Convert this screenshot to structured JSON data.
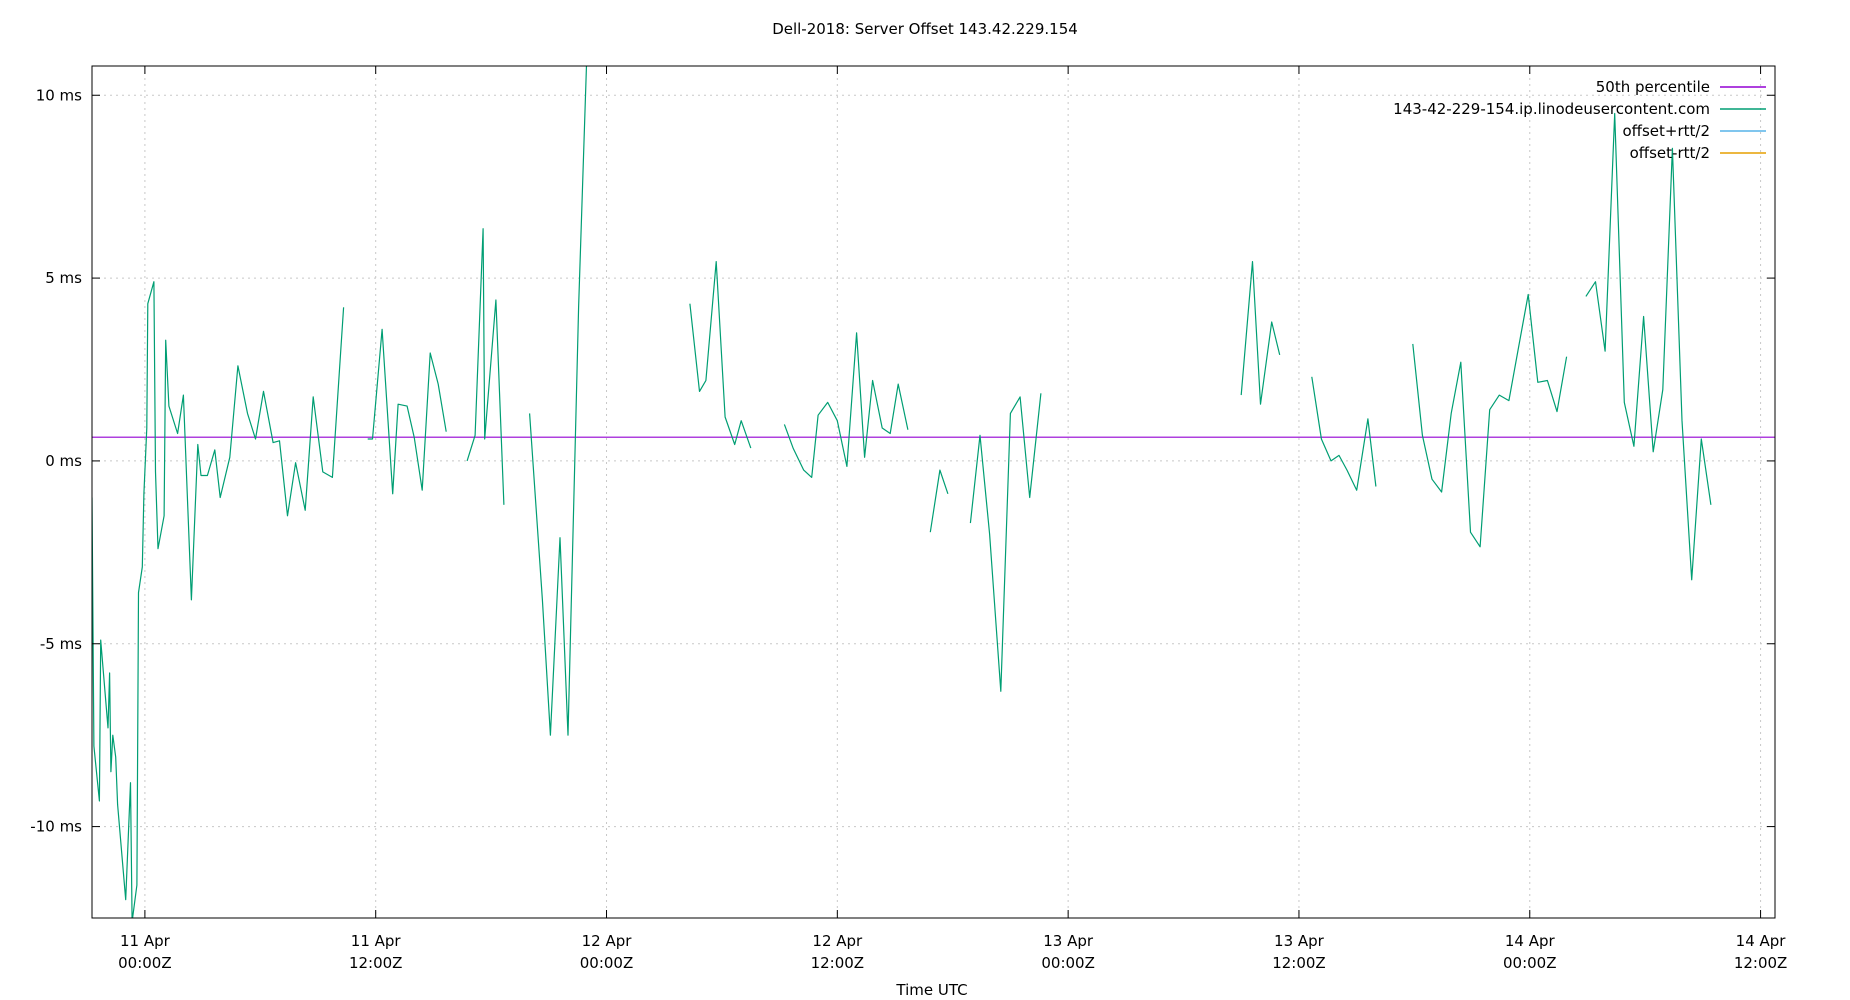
{
  "chart_data": {
    "type": "line",
    "title": "Dell-2018: Server Offset 143.42.229.154",
    "xlabel": "Time UTC",
    "ylabel": "",
    "ylim": [
      -12.5,
      10.8
    ],
    "xlim": [
      "2025-04-10T21:15:00Z",
      "2025-04-14T12:45:00Z"
    ],
    "grid": true,
    "legend_position": "top-right",
    "yticks": [
      {
        "value": 10,
        "label": "10 ms"
      },
      {
        "value": 5,
        "label": "5 ms"
      },
      {
        "value": 0,
        "label": "0 ms"
      },
      {
        "value": -5,
        "label": "-5 ms"
      },
      {
        "value": -10,
        "label": "-10 ms"
      }
    ],
    "xticks": [
      {
        "value": "2025-04-11T00:00:00Z",
        "line1": "11 Apr",
        "line2": "00:00Z"
      },
      {
        "value": "2025-04-11T12:00:00Z",
        "line1": "11 Apr",
        "line2": "12:00Z"
      },
      {
        "value": "2025-04-12T00:00:00Z",
        "line1": "12 Apr",
        "line2": "00:00Z"
      },
      {
        "value": "2025-04-12T12:00:00Z",
        "line1": "12 Apr",
        "line2": "12:00Z"
      },
      {
        "value": "2025-04-13T00:00:00Z",
        "line1": "13 Apr",
        "line2": "00:00Z"
      },
      {
        "value": "2025-04-13T12:00:00Z",
        "line1": "13 Apr",
        "line2": "12:00Z"
      },
      {
        "value": "2025-04-14T00:00:00Z",
        "line1": "14 Apr",
        "line2": "00:00Z"
      },
      {
        "value": "2025-04-14T12:00:00Z",
        "line1": "14 Apr",
        "line2": "12:00Z"
      }
    ],
    "legend": [
      {
        "label": "50th percentile",
        "color": "#9400d3"
      },
      {
        "label": "143-42-229-154.ip.linodeusercontent.com",
        "color": "#009e73"
      },
      {
        "label": "offset+rtt/2",
        "color": "#56b4e9"
      },
      {
        "label": "offset-rtt/2",
        "color": "#e69f00"
      }
    ],
    "series": [
      {
        "name": "50th percentile",
        "color": "#9400d3",
        "segments": [
          [
            [
              "2025-04-10T21:15:00Z",
              0.65
            ],
            [
              "2025-04-14T12:45:00Z",
              0.65
            ]
          ]
        ]
      },
      {
        "name": "143-42-229-154.ip.linodeusercontent.com",
        "color": "#009e73",
        "segments": [
          [
            [
              "2025-04-10T21:15:00Z",
              -1.0
            ],
            [
              "2025-04-10T21:21:00Z",
              -7.8
            ],
            [
              "2025-04-10T21:38:00Z",
              -9.3
            ],
            [
              "2025-04-10T21:42:00Z",
              -4.9
            ],
            [
              "2025-04-10T22:05:00Z",
              -7.3
            ],
            [
              "2025-04-10T22:10:00Z",
              -5.8
            ],
            [
              "2025-04-10T22:14:00Z",
              -8.5
            ],
            [
              "2025-04-10T22:20:00Z",
              -7.5
            ],
            [
              "2025-04-10T22:29:00Z",
              -8.1
            ],
            [
              "2025-04-10T22:35:00Z",
              -9.4
            ],
            [
              "2025-04-10T23:00:00Z",
              -12.0
            ],
            [
              "2025-04-10T23:15:00Z",
              -8.8
            ],
            [
              "2025-04-10T23:20:00Z",
              -12.6
            ],
            [
              "2025-04-10T23:35:00Z",
              -11.6
            ],
            [
              "2025-04-10T23:40:00Z",
              -3.6
            ],
            [
              "2025-04-10T23:52:00Z",
              -2.9
            ],
            [
              "2025-04-10T23:57:00Z",
              -0.9
            ],
            [
              "2025-04-11T00:06:00Z",
              0.9
            ],
            [
              "2025-04-11T00:09:00Z",
              4.3
            ],
            [
              "2025-04-11T00:28:00Z",
              4.9
            ],
            [
              "2025-04-11T00:33:00Z",
              -0.3
            ],
            [
              "2025-04-11T00:41:00Z",
              -2.4
            ],
            [
              "2025-04-11T01:00:00Z",
              -1.5
            ],
            [
              "2025-04-11T01:05:00Z",
              3.3
            ],
            [
              "2025-04-11T01:15:00Z",
              1.5
            ],
            [
              "2025-04-11T01:42:00Z",
              0.75
            ],
            [
              "2025-04-11T02:00:00Z",
              1.8
            ],
            [
              "2025-04-11T02:25:00Z",
              -3.8
            ],
            [
              "2025-04-11T02:45:00Z",
              0.45
            ],
            [
              "2025-04-11T02:55:00Z",
              -0.4
            ],
            [
              "2025-04-11T03:15:00Z",
              -0.4
            ],
            [
              "2025-04-11T03:38:00Z",
              0.3
            ],
            [
              "2025-04-11T03:55:00Z",
              -1.0
            ],
            [
              "2025-04-11T04:25:00Z",
              0.1
            ],
            [
              "2025-04-11T04:50:00Z",
              2.6
            ],
            [
              "2025-04-11T05:20:00Z",
              1.3
            ],
            [
              "2025-04-11T05:45:00Z",
              0.6
            ],
            [
              "2025-04-11T06:10:00Z",
              1.9
            ],
            [
              "2025-04-11T06:40:00Z",
              0.5
            ],
            [
              "2025-04-11T07:00:00Z",
              0.55
            ],
            [
              "2025-04-11T07:25:00Z",
              -1.5
            ],
            [
              "2025-04-11T07:50:00Z",
              -0.05
            ],
            [
              "2025-04-11T08:20:00Z",
              -1.35
            ],
            [
              "2025-04-11T08:45:00Z",
              1.75
            ],
            [
              "2025-04-11T09:15:00Z",
              -0.3
            ],
            [
              "2025-04-11T09:45:00Z",
              -0.45
            ],
            [
              "2025-04-11T10:20:00Z",
              4.2
            ]
          ],
          [
            [
              "2025-04-11T11:35:00Z",
              0.6
            ],
            [
              "2025-04-11T11:50:00Z",
              0.6
            ],
            [
              "2025-04-11T12:20:00Z",
              3.6
            ],
            [
              "2025-04-11T12:53:00Z",
              -0.9
            ],
            [
              "2025-04-11T13:10:00Z",
              1.55
            ],
            [
              "2025-04-11T13:38:00Z",
              1.5
            ],
            [
              "2025-04-11T14:00:00Z",
              0.65
            ],
            [
              "2025-04-11T14:25:00Z",
              -0.8
            ],
            [
              "2025-04-11T14:50:00Z",
              2.95
            ],
            [
              "2025-04-11T15:15:00Z",
              2.1
            ],
            [
              "2025-04-11T15:40:00Z",
              0.8
            ]
          ],
          [
            [
              "2025-04-11T16:45:00Z",
              0.0
            ],
            [
              "2025-04-11T17:10:00Z",
              0.7
            ],
            [
              "2025-04-11T17:35:00Z",
              6.35
            ],
            [
              "2025-04-11T17:40:00Z",
              0.6
            ],
            [
              "2025-04-11T18:15:00Z",
              4.4
            ],
            [
              "2025-04-11T18:40:00Z",
              -1.2
            ]
          ],
          [
            [
              "2025-04-11T20:00:00Z",
              1.3
            ],
            [
              "2025-04-11T20:40:00Z",
              -3.8
            ],
            [
              "2025-04-11T21:05:00Z",
              -7.5
            ],
            [
              "2025-04-11T21:35:00Z",
              -2.1
            ],
            [
              "2025-04-11T22:00:00Z",
              -7.5
            ],
            [
              "2025-04-11T22:33:00Z",
              4.2
            ],
            [
              "2025-04-11T23:00:00Z",
              11.5
            ]
          ],
          [
            [
              "2025-04-12T04:20:00Z",
              4.3
            ],
            [
              "2025-04-12T04:50:00Z",
              1.9
            ],
            [
              "2025-04-12T05:10:00Z",
              2.2
            ],
            [
              "2025-04-12T05:42:00Z",
              5.45
            ],
            [
              "2025-04-12T06:10:00Z",
              1.2
            ],
            [
              "2025-04-12T06:40:00Z",
              0.45
            ],
            [
              "2025-04-12T07:00:00Z",
              1.1
            ],
            [
              "2025-04-12T07:30:00Z",
              0.35
            ]
          ],
          [
            [
              "2025-04-12T09:15:00Z",
              1.0
            ],
            [
              "2025-04-12T09:42:00Z",
              0.35
            ],
            [
              "2025-04-12T10:15:00Z",
              -0.25
            ],
            [
              "2025-04-12T10:40:00Z",
              -0.45
            ],
            [
              "2025-04-12T11:00:00Z",
              1.25
            ],
            [
              "2025-04-12T11:30:00Z",
              1.6
            ],
            [
              "2025-04-12T12:00:00Z",
              1.1
            ],
            [
              "2025-04-12T12:30:00Z",
              -0.15
            ],
            [
              "2025-04-12T13:00:00Z",
              3.5
            ],
            [
              "2025-04-12T13:25:00Z",
              0.1
            ],
            [
              "2025-04-12T13:50:00Z",
              2.2
            ],
            [
              "2025-04-12T14:20:00Z",
              0.9
            ],
            [
              "2025-04-12T14:45:00Z",
              0.75
            ],
            [
              "2025-04-12T15:10:00Z",
              2.1
            ],
            [
              "2025-04-12T15:40:00Z",
              0.85
            ]
          ],
          [
            [
              "2025-04-12T16:50:00Z",
              -1.95
            ],
            [
              "2025-04-12T17:20:00Z",
              -0.25
            ],
            [
              "2025-04-12T17:45:00Z",
              -0.9
            ]
          ],
          [
            [
              "2025-04-12T18:55:00Z",
              -1.7
            ],
            [
              "2025-04-12T19:25:00Z",
              0.7
            ],
            [
              "2025-04-12T19:55:00Z",
              -2.0
            ],
            [
              "2025-04-12T20:30:00Z",
              -6.3
            ],
            [
              "2025-04-12T21:00:00Z",
              1.3
            ],
            [
              "2025-04-12T21:30:00Z",
              1.75
            ],
            [
              "2025-04-12T22:00:00Z",
              -1.0
            ],
            [
              "2025-04-12T22:35:00Z",
              1.85
            ]
          ],
          [
            [
              "2025-04-13T09:00:00Z",
              1.8
            ],
            [
              "2025-04-13T09:35:00Z",
              5.45
            ],
            [
              "2025-04-13T10:00:00Z",
              1.55
            ],
            [
              "2025-04-13T10:35:00Z",
              3.8
            ],
            [
              "2025-04-13T11:00:00Z",
              2.9
            ]
          ],
          [
            [
              "2025-04-13T12:40:00Z",
              2.3
            ],
            [
              "2025-04-13T13:10:00Z",
              0.6
            ],
            [
              "2025-04-13T13:40:00Z",
              0.0
            ],
            [
              "2025-04-13T14:05:00Z",
              0.15
            ],
            [
              "2025-04-13T14:30:00Z",
              -0.25
            ],
            [
              "2025-04-13T15:00:00Z",
              -0.8
            ],
            [
              "2025-04-13T15:35:00Z",
              1.15
            ],
            [
              "2025-04-13T16:00:00Z",
              -0.7
            ]
          ],
          [
            [
              "2025-04-13T17:55:00Z",
              3.2
            ],
            [
              "2025-04-13T18:25:00Z",
              0.7
            ],
            [
              "2025-04-13T18:55:00Z",
              -0.5
            ],
            [
              "2025-04-13T19:25:00Z",
              -0.85
            ],
            [
              "2025-04-13T19:55:00Z",
              1.3
            ],
            [
              "2025-04-13T20:25:00Z",
              2.7
            ],
            [
              "2025-04-13T20:55:00Z",
              -1.95
            ],
            [
              "2025-04-13T21:25:00Z",
              -2.35
            ],
            [
              "2025-04-13T21:55:00Z",
              1.4
            ],
            [
              "2025-04-13T22:25:00Z",
              1.8
            ],
            [
              "2025-04-13T22:55:00Z",
              1.65
            ],
            [
              "2025-04-13T23:25:00Z",
              3.1
            ],
            [
              "2025-04-13T23:55:00Z",
              4.55
            ],
            [
              "2025-04-14T00:25:00Z",
              2.15
            ],
            [
              "2025-04-14T00:55:00Z",
              2.2
            ],
            [
              "2025-04-14T01:25:00Z",
              1.35
            ],
            [
              "2025-04-14T01:55:00Z",
              2.85
            ]
          ],
          [
            [
              "2025-04-14T02:55:00Z",
              4.5
            ],
            [
              "2025-04-14T03:25:00Z",
              4.9
            ],
            [
              "2025-04-14T03:55:00Z",
              3.0
            ],
            [
              "2025-04-14T04:25:00Z",
              9.5
            ],
            [
              "2025-04-14T04:55:00Z",
              1.6
            ],
            [
              "2025-04-14T05:25:00Z",
              0.4
            ],
            [
              "2025-04-14T05:55:00Z",
              3.95
            ],
            [
              "2025-04-14T06:25:00Z",
              0.25
            ],
            [
              "2025-04-14T06:55:00Z",
              1.95
            ],
            [
              "2025-04-14T07:25:00Z",
              8.55
            ],
            [
              "2025-04-14T07:55:00Z",
              1.1
            ],
            [
              "2025-04-14T08:25:00Z",
              -3.25
            ],
            [
              "2025-04-14T08:55:00Z",
              0.6
            ],
            [
              "2025-04-14T09:25:00Z",
              -1.2
            ]
          ]
        ]
      },
      {
        "name": "offset+rtt/2",
        "color": "#56b4e9",
        "segments": []
      },
      {
        "name": "offset-rtt/2",
        "color": "#e69f00",
        "segments": []
      }
    ]
  }
}
